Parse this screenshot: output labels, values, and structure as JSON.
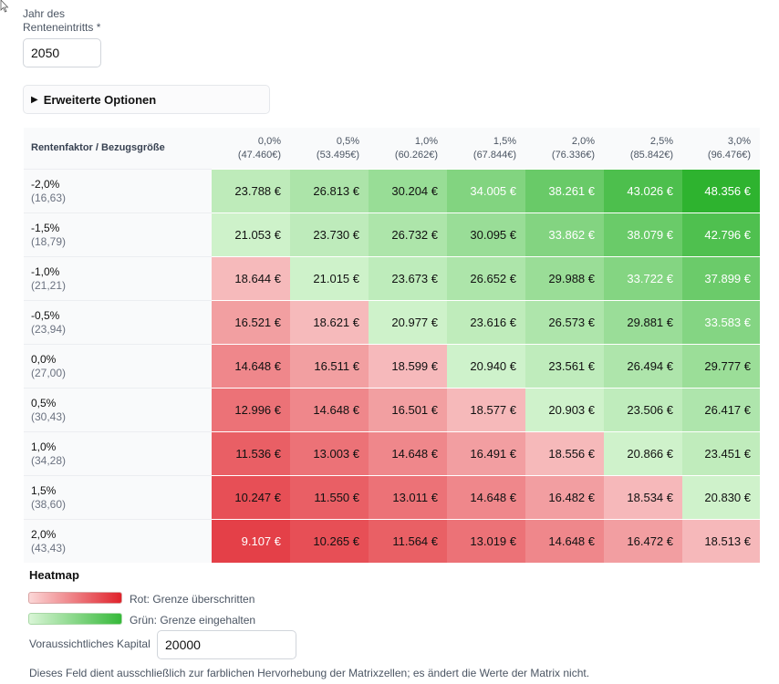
{
  "retirement_year": {
    "label": "Jahr des Renteneintritts *",
    "value": "2050"
  },
  "advanced_options": {
    "label": "Erweiterte Optionen"
  },
  "matrix": {
    "corner_label": "Rentenfaktor / Bezugsgröße",
    "columns": [
      {
        "rate": "0,0%",
        "base": "(47.460€)"
      },
      {
        "rate": "0,5%",
        "base": "(53.495€)"
      },
      {
        "rate": "1,0%",
        "base": "(60.262€)"
      },
      {
        "rate": "1,5%",
        "base": "(67.844€)"
      },
      {
        "rate": "2,0%",
        "base": "(76.336€)"
      },
      {
        "rate": "2,5%",
        "base": "(85.842€)"
      },
      {
        "rate": "3,0%",
        "base": "(96.476€)"
      }
    ],
    "rows": [
      {
        "rate": "-2,0%",
        "factor": "(16,63)",
        "values": [
          "23.788 €",
          "26.813 €",
          "30.204 €",
          "34.005 €",
          "38.261 €",
          "43.026 €",
          "48.356 €"
        ]
      },
      {
        "rate": "-1,5%",
        "factor": "(18,79)",
        "values": [
          "21.053 €",
          "23.730 €",
          "26.732 €",
          "30.095 €",
          "33.862 €",
          "38.079 €",
          "42.796 €"
        ]
      },
      {
        "rate": "-1,0%",
        "factor": "(21,21)",
        "values": [
          "18.644 €",
          "21.015 €",
          "23.673 €",
          "26.652 €",
          "29.988 €",
          "33.722 €",
          "37.899 €"
        ]
      },
      {
        "rate": "-0,5%",
        "factor": "(23,94)",
        "values": [
          "16.521 €",
          "18.621 €",
          "20.977 €",
          "23.616 €",
          "26.573 €",
          "29.881 €",
          "33.583 €"
        ]
      },
      {
        "rate": "0,0%",
        "factor": "(27,00)",
        "values": [
          "14.648 €",
          "16.511 €",
          "18.599 €",
          "20.940 €",
          "23.561 €",
          "26.494 €",
          "29.777 €"
        ]
      },
      {
        "rate": "0,5%",
        "factor": "(30,43)",
        "values": [
          "12.996 €",
          "14.648 €",
          "16.501 €",
          "18.577 €",
          "20.903 €",
          "23.506 €",
          "26.417 €"
        ]
      },
      {
        "rate": "1,0%",
        "factor": "(34,28)",
        "values": [
          "11.536 €",
          "13.003 €",
          "14.648 €",
          "16.491 €",
          "18.556 €",
          "20.866 €",
          "23.451 €"
        ]
      },
      {
        "rate": "1,5%",
        "factor": "(38,60)",
        "values": [
          "10.247 €",
          "11.550 €",
          "13.011 €",
          "14.648 €",
          "16.482 €",
          "18.534 €",
          "20.830 €"
        ]
      },
      {
        "rate": "2,0%",
        "factor": "(43,43)",
        "values": [
          "9.107 €",
          "10.265 €",
          "11.564 €",
          "13.019 €",
          "14.648 €",
          "16.472 €",
          "18.513 €"
        ]
      }
    ]
  },
  "heatmap": {
    "title": "Heatmap",
    "legend_red": "Rot: Grenze überschritten",
    "legend_green": "Grün: Grenze eingehalten",
    "red_color": "#e0222b",
    "green_color": "#2eb32f"
  },
  "capital": {
    "label": "Voraussichtliches Kapital",
    "value": "20000"
  },
  "note": "Dieses Feld dient ausschließlich zur farblichen Hervorhebung der Matrixzellen; es ändert die Werte der Matrix nicht."
}
